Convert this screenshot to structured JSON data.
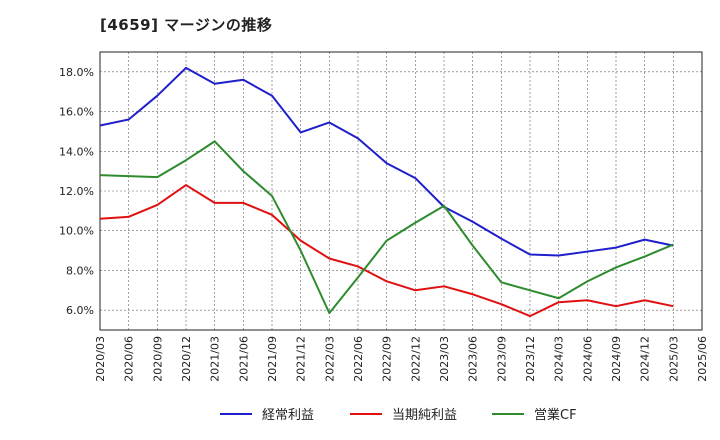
{
  "chart_data": {
    "type": "line",
    "title": "[4659]  マージンの推移",
    "xlabel": "",
    "ylabel": "",
    "categories": [
      "2020/03",
      "2020/06",
      "2020/09",
      "2020/12",
      "2021/03",
      "2021/06",
      "2021/09",
      "2021/12",
      "2022/03",
      "2022/06",
      "2022/09",
      "2022/12",
      "2023/03",
      "2023/06",
      "2023/09",
      "2023/12",
      "2024/03",
      "2024/06",
      "2024/09",
      "2024/12",
      "2025/03",
      "2025/06"
    ],
    "ylim": [
      5.0,
      19.0
    ],
    "yticks": [
      6.0,
      8.0,
      10.0,
      12.0,
      14.0,
      16.0,
      18.0
    ],
    "ytick_labels": [
      "6.0%",
      "8.0%",
      "10.0%",
      "12.0%",
      "14.0%",
      "16.0%",
      "18.0%"
    ],
    "grid": true,
    "legend_position": "bottom",
    "series": [
      {
        "name": "経常利益",
        "color": "#1f1fcc",
        "values": [
          15.3,
          15.6,
          16.8,
          18.2,
          17.4,
          17.6,
          16.8,
          14.95,
          15.45,
          14.65,
          13.4,
          12.65,
          11.2,
          10.45,
          9.6,
          8.8,
          8.75,
          8.95,
          9.15,
          9.55,
          9.25,
          null
        ]
      },
      {
        "name": "当期純利益",
        "color": "#e01010",
        "values": [
          10.6,
          10.7,
          11.3,
          12.3,
          11.4,
          11.4,
          10.8,
          9.5,
          8.6,
          8.2,
          7.45,
          7.0,
          7.2,
          6.8,
          6.3,
          5.7,
          6.4,
          6.5,
          6.2,
          6.5,
          6.2,
          null
        ]
      },
      {
        "name": "営業CF",
        "color": "#2e8b2e",
        "values": [
          12.8,
          12.75,
          12.7,
          13.55,
          14.5,
          13.0,
          11.75,
          9.0,
          5.85,
          7.65,
          9.5,
          10.4,
          11.25,
          9.25,
          7.4,
          7.0,
          6.6,
          7.45,
          8.15,
          8.7,
          9.3,
          null
        ]
      }
    ]
  }
}
